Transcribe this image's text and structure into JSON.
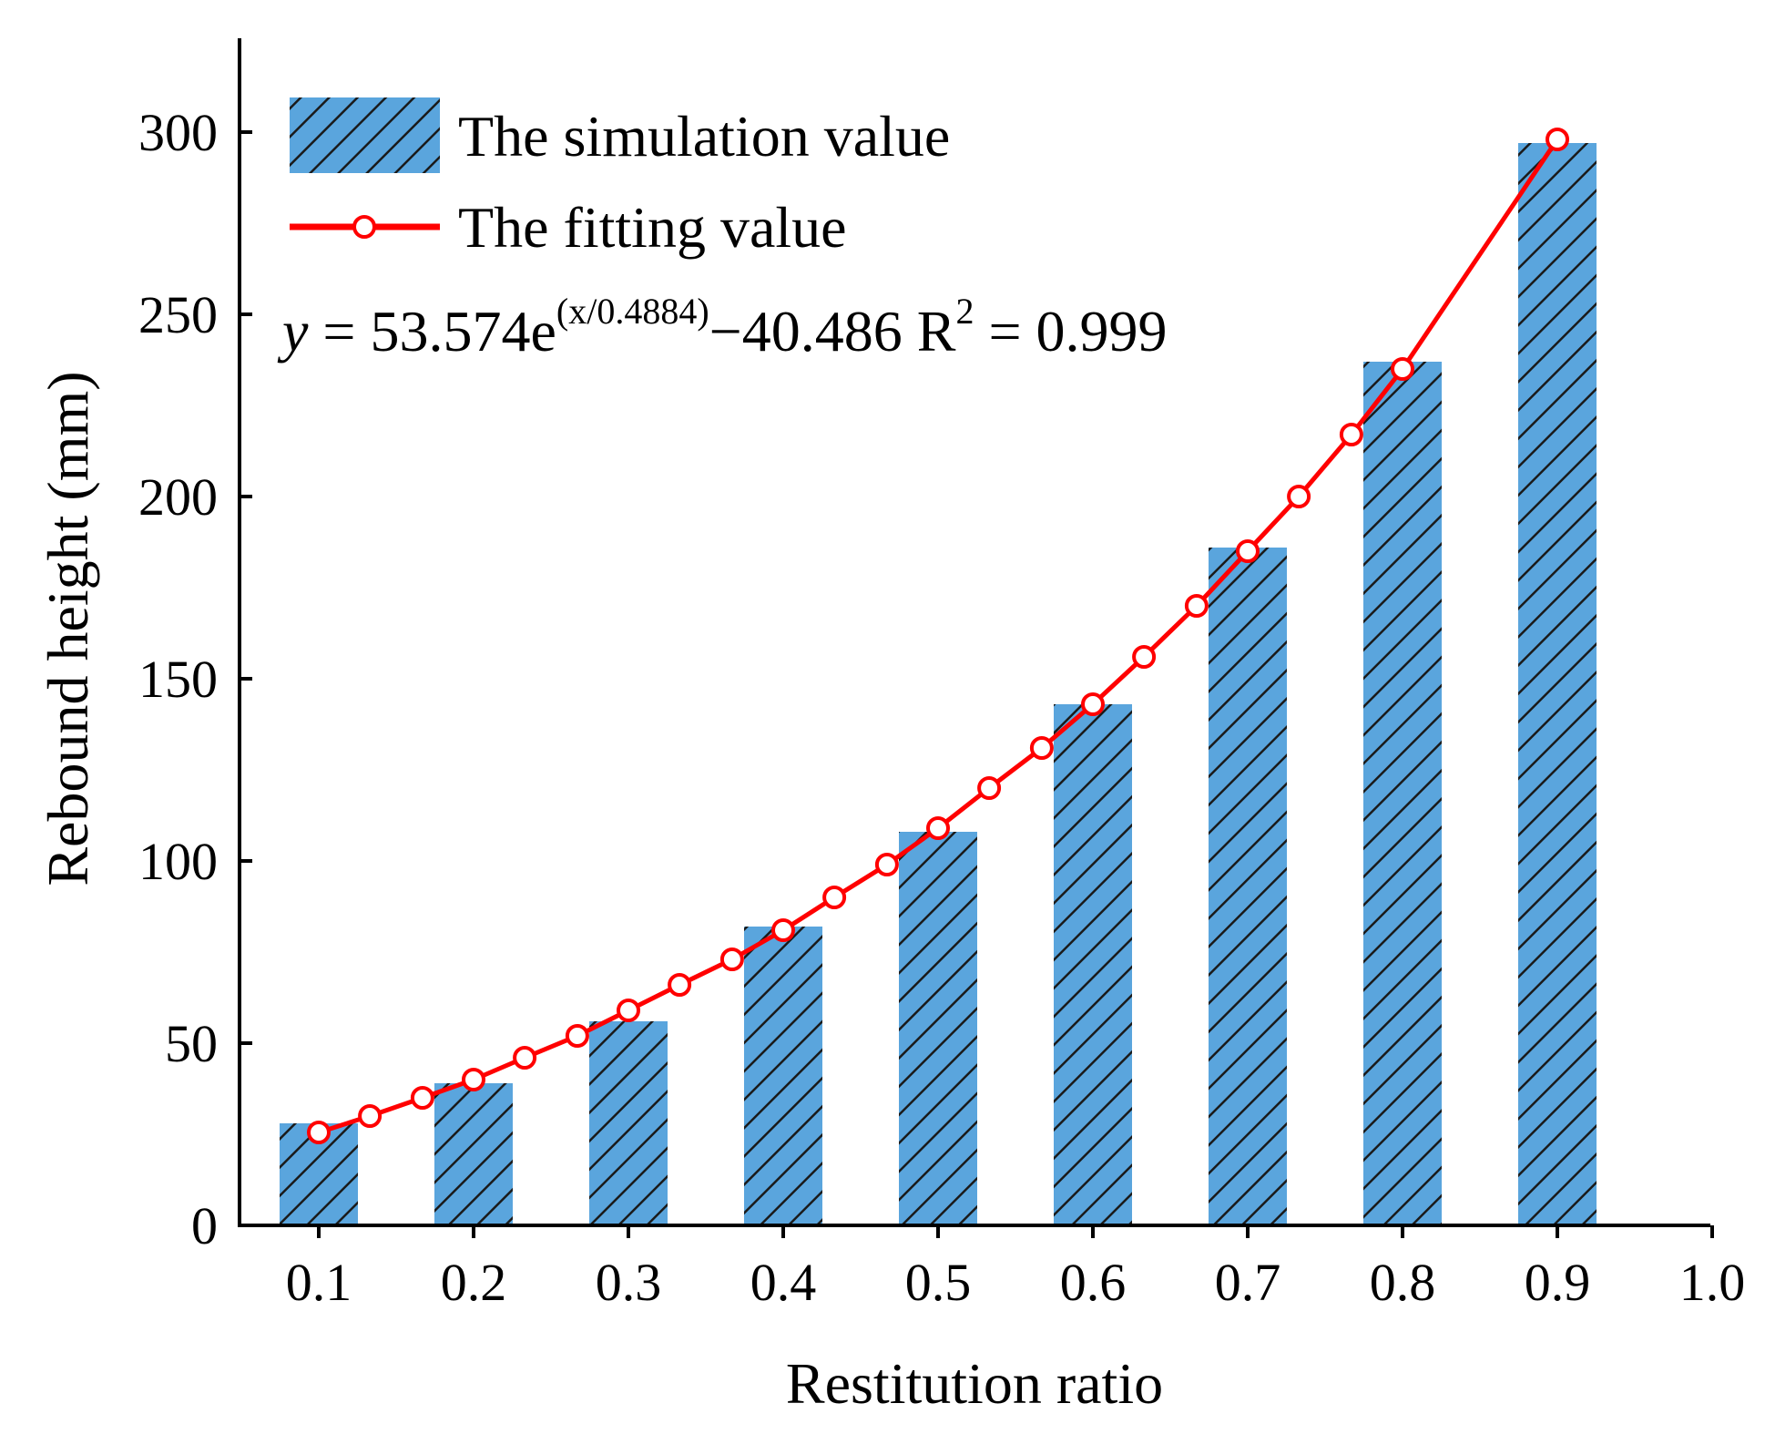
{
  "chart_data": {
    "type": "bar",
    "title": "",
    "xlabel": "Restitution ratio",
    "ylabel": "Rebound height (mm)",
    "xlim": [
      0.05,
      1.0
    ],
    "ylim": [
      0,
      320
    ],
    "x_ticks": [
      "0.1",
      "0.2",
      "0.3",
      "0.4",
      "0.5",
      "0.6",
      "0.7",
      "0.8",
      "0.9",
      "1.0"
    ],
    "y_ticks": [
      "0",
      "50",
      "100",
      "150",
      "200",
      "250",
      "300"
    ],
    "y_tick_values": [
      0,
      50,
      100,
      150,
      200,
      250,
      300
    ],
    "x_tick_values": [
      0.1,
      0.2,
      0.3,
      0.4,
      0.5,
      0.6,
      0.7,
      0.8,
      0.9,
      1.0
    ],
    "bar_series": {
      "name": "The simulation value",
      "x": [
        0.1,
        0.2,
        0.3,
        0.4,
        0.5,
        0.6,
        0.7,
        0.8,
        0.9
      ],
      "values": [
        28,
        39,
        56,
        82,
        108,
        143,
        186,
        237,
        297
      ],
      "color": "#5aa5dd",
      "hatch_color": "#1a1a1a"
    },
    "line_series": {
      "name": "The fitting value",
      "x": [
        0.1,
        0.133,
        0.167,
        0.2,
        0.233,
        0.267,
        0.3,
        0.333,
        0.367,
        0.4,
        0.433,
        0.467,
        0.5,
        0.533,
        0.567,
        0.6,
        0.633,
        0.667,
        0.7,
        0.733,
        0.767,
        0.8,
        0.9
      ],
      "values": [
        25.5,
        30,
        35,
        40,
        46,
        52,
        59,
        66,
        73,
        81,
        90,
        99,
        109,
        120,
        131,
        143,
        156,
        170,
        185,
        200,
        217,
        235,
        298
      ],
      "color": "#ff0000"
    },
    "legend": {
      "position": "top-left",
      "entries": [
        "The simulation value",
        "The fitting value"
      ]
    },
    "annotation": {
      "y_var": "y",
      "eq_main": " = 53.574e",
      "exponent": "(x/0.4884)",
      "eq_tail": "−40.486  R",
      "r_sup": "2",
      "r_tail": " = 0.999"
    }
  }
}
